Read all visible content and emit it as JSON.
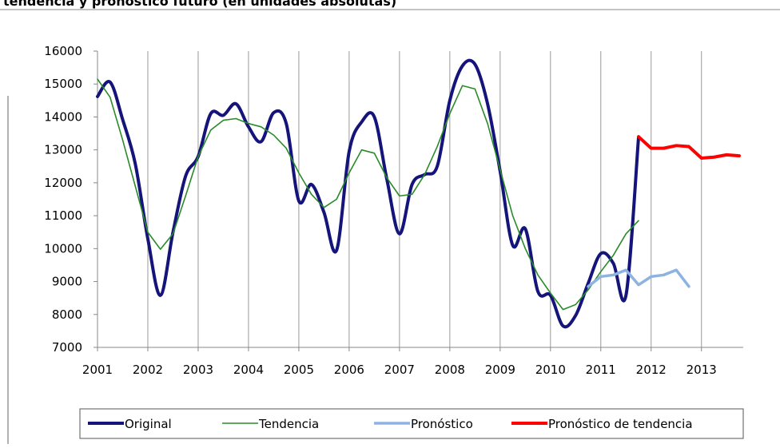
{
  "chart_data": {
    "type": "line",
    "title": "tendencia y pronóstico futuro (en unidades absolutas)",
    "x": [
      2001,
      2001.25,
      2001.5,
      2001.75,
      2002,
      2002.25,
      2002.5,
      2002.75,
      2003,
      2003.25,
      2003.5,
      2003.75,
      2004,
      2004.25,
      2004.5,
      2004.75,
      2005,
      2005.25,
      2005.5,
      2005.75,
      2006,
      2006.25,
      2006.5,
      2006.75,
      2007,
      2007.25,
      2007.5,
      2007.75,
      2008,
      2008.25,
      2008.5,
      2008.75,
      2009,
      2009.25,
      2009.5,
      2009.75,
      2010,
      2010.25,
      2010.5,
      2010.75,
      2011,
      2011.25,
      2011.5,
      2011.75,
      2012,
      2012.25,
      2012.5,
      2012.75,
      2013,
      2013.25,
      2013.5,
      2013.75
    ],
    "series": [
      {
        "name": "Original",
        "color": "#14147a",
        "smooth": true,
        "values": [
          14620,
          15060,
          13920,
          12580,
          10300,
          8580,
          10500,
          12200,
          12800,
          14100,
          14050,
          14400,
          13700,
          13250,
          14130,
          13800,
          11450,
          11950,
          11100,
          9950,
          12950,
          13850,
          14000,
          12100,
          10450,
          11950,
          12250,
          12500,
          14500,
          15550,
          15600,
          14400,
          12350,
          10100,
          10600,
          8700,
          8580,
          7650,
          7970,
          8950,
          9850,
          9550,
          8580,
          13380,
          null,
          null,
          null,
          null,
          null,
          null,
          null,
          null
        ]
      },
      {
        "name": "Tendencia",
        "color": "#2a8a2a",
        "smooth": false,
        "values": [
          15150,
          14600,
          13300,
          11900,
          10500,
          9980,
          10450,
          11600,
          12800,
          13600,
          13900,
          13950,
          13800,
          13700,
          13450,
          13050,
          12300,
          11650,
          11250,
          11500,
          12300,
          13000,
          12900,
          12150,
          11600,
          11650,
          12250,
          13100,
          14100,
          14950,
          14850,
          13800,
          12400,
          11000,
          10000,
          9200,
          8650,
          8150,
          8300,
          8750,
          9300,
          9800,
          10450,
          10850,
          null,
          null,
          null,
          null,
          null,
          null,
          null,
          null
        ]
      },
      {
        "name": "Pronóstico",
        "color": "#8db3e2",
        "smooth": false,
        "values": [
          null,
          null,
          null,
          null,
          null,
          null,
          null,
          null,
          null,
          null,
          null,
          null,
          null,
          null,
          null,
          null,
          null,
          null,
          null,
          null,
          null,
          null,
          null,
          null,
          null,
          null,
          null,
          null,
          null,
          null,
          null,
          null,
          null,
          null,
          null,
          null,
          null,
          null,
          null,
          8850,
          9150,
          9200,
          9350,
          8900,
          9150,
          9200,
          9350,
          8850,
          null,
          null,
          null,
          null
        ]
      },
      {
        "name": "Pronóstico de tendencia",
        "color": "#ff0000",
        "smooth": false,
        "values": [
          null,
          null,
          null,
          null,
          null,
          null,
          null,
          null,
          null,
          null,
          null,
          null,
          null,
          null,
          null,
          null,
          null,
          null,
          null,
          null,
          null,
          null,
          null,
          null,
          null,
          null,
          null,
          null,
          null,
          null,
          null,
          null,
          null,
          null,
          null,
          null,
          null,
          null,
          null,
          null,
          null,
          null,
          null,
          13400,
          13050,
          13050,
          13130,
          13100,
          12750,
          12780,
          12850,
          12820
        ]
      }
    ],
    "xlim": [
      2001,
      2013.83
    ],
    "xticks": [
      2001,
      2002,
      2003,
      2004,
      2005,
      2006,
      2007,
      2008,
      2009,
      2010,
      2011,
      2012,
      2013
    ],
    "ylim": [
      7000,
      16000
    ],
    "yticks": [
      7000,
      8000,
      9000,
      10000,
      11000,
      12000,
      13000,
      14000,
      15000,
      16000
    ],
    "grid": "x",
    "legend": "bottom"
  }
}
